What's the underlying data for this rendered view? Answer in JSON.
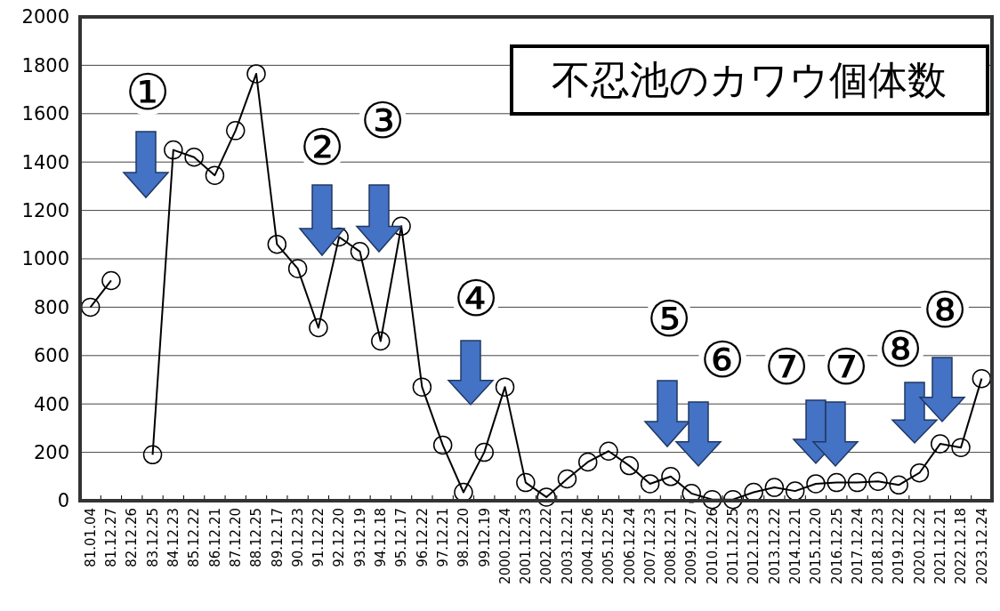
{
  "chart_data": {
    "type": "line",
    "title": "不忍池のカワウ個体数",
    "categories": [
      "81.01.04",
      "81.12.27",
      "82.12.26",
      "83.12.25",
      "84.12.23",
      "85.12.22",
      "86.12.21",
      "87.12.20",
      "88.12.25",
      "89.12.17",
      "90.12.23",
      "91.12.22",
      "92.12.20",
      "93.12.19",
      "94.12.18",
      "95.12.17",
      "96.12.22",
      "97.12.21",
      "98.12.20",
      "99.12.19",
      "2000.12.24",
      "2001.12.23",
      "2002.12.22",
      "2003.12.21",
      "2004.12.26",
      "2005.12.25",
      "2006.12.24",
      "2007.12.23",
      "2008.12.21",
      "2009.12.27",
      "2010.12.26",
      "2011.12.25",
      "2012.12.23",
      "2013.12.22",
      "2014.12.21",
      "2015.12.20",
      "2016.12.25",
      "2017.12.24",
      "2018.12.23",
      "2019.12.22",
      "2020.12.22",
      "2021.12.21",
      "2022.12.18",
      "2023.12.24"
    ],
    "series": [
      {
        "color": "#000000",
        "values": [
          800,
          910,
          null,
          190,
          1450,
          1420,
          1345,
          1530,
          1765,
          1060,
          960,
          715,
          1090,
          1030,
          660,
          1135,
          470,
          230,
          35,
          200,
          470,
          75,
          15,
          90,
          160,
          205,
          145,
          70,
          100,
          30,
          5,
          5,
          35,
          55,
          40,
          70,
          75,
          75,
          80,
          65,
          115,
          235,
          220,
          505
        ]
      }
    ],
    "ylim": [
      0,
      2000
    ],
    "yticks": [
      0,
      200,
      400,
      600,
      800,
      1000,
      1200,
      1400,
      1600,
      1800,
      2000
    ],
    "grid": "y",
    "marker": "circle",
    "annotations": [
      "①",
      "②",
      "③",
      "④",
      "⑤",
      "⑥",
      "⑦",
      "⑦",
      "⑧",
      "⑧"
    ]
  }
}
